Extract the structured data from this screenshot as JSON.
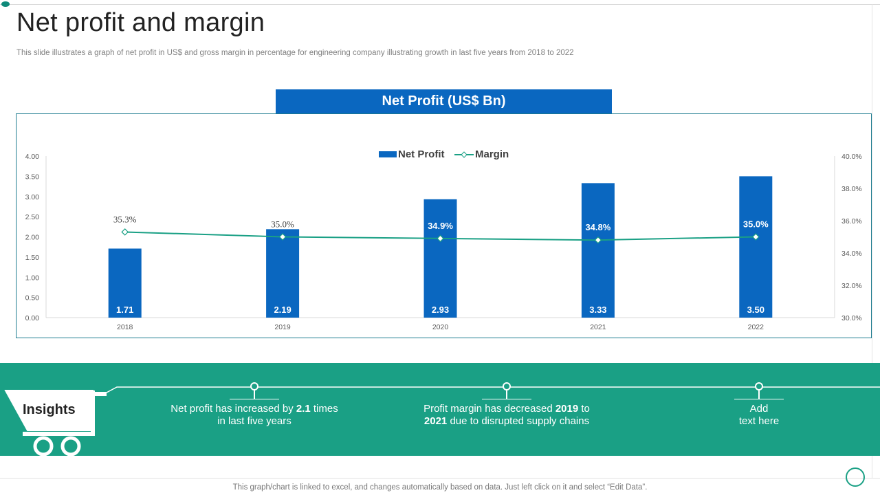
{
  "header": {
    "title": "Net profit and margin",
    "subtitle": "This slide illustrates a graph of net profit in US$ and gross margin in percentage for engineering company illustrating growth in last five years from 2018 to 2022"
  },
  "colors": {
    "bar": "#0a67c0",
    "line": "#1aa085",
    "band": "#1aa085"
  },
  "chart_data": {
    "type": "bar",
    "title": "Net Profit (US$ Bn)",
    "categories": [
      "2018",
      "2019",
      "2020",
      "2021",
      "2022"
    ],
    "series": [
      {
        "name": "Net Profit",
        "type": "bar",
        "axis": "left",
        "values": [
          1.71,
          2.19,
          2.93,
          3.33,
          3.5
        ],
        "labels": [
          "1.71",
          "2.19",
          "2.93",
          "3.33",
          "3.50"
        ]
      },
      {
        "name": "Margin",
        "type": "line",
        "axis": "right",
        "values": [
          35.3,
          35.0,
          34.9,
          34.8,
          35.0
        ],
        "labels": [
          "35.3%",
          "35.0%",
          "34.9%",
          "34.8%",
          "35.0%"
        ]
      }
    ],
    "y_left": {
      "min": 0,
      "max": 4,
      "ticks": [
        "0.00",
        "0.50",
        "1.00",
        "1.50",
        "2.00",
        "2.50",
        "3.00",
        "3.50",
        "4.00"
      ]
    },
    "y_right": {
      "min": 30,
      "max": 40,
      "ticks": [
        "30.0%",
        "32.0%",
        "34.0%",
        "36.0%",
        "38.0%",
        "40.0%"
      ]
    },
    "legend": [
      "Net Profit",
      "Margin"
    ],
    "legend_position": "top-center"
  },
  "insights": {
    "label": "Insights",
    "items": [
      {
        "pre": "Net profit has increased by ",
        "bold": "2.1",
        "post": " times",
        "line2": "in last five years"
      },
      {
        "pre": "Profit margin has decreased ",
        "bold": "2019",
        "post": " to",
        "line2_bold": "2021",
        "line2": " due to disrupted supply chains"
      },
      {
        "line1": "Add",
        "line2": "text here"
      }
    ]
  },
  "footer": {
    "note": "This graph/chart is linked to excel,  and changes automatically based on data. Just left click on it and select “Edit Data”."
  }
}
